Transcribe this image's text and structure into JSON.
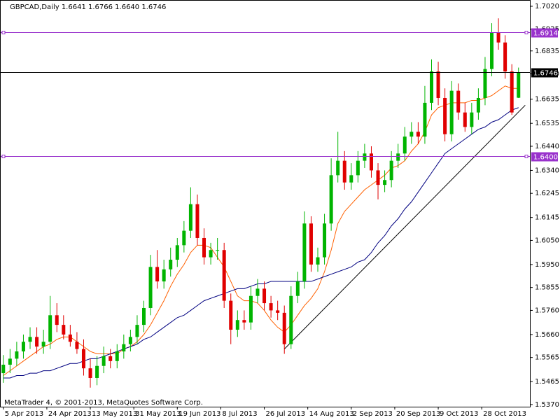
{
  "chart_data": {
    "type": "candlestick",
    "title": "GBPCAD,Daily  1.6641 1.6766 1.6640 1.6746",
    "credit": "MetaTrader 4, © 2001-2013, MetaQuotes Software Corp.",
    "up_color": "#00b400",
    "down_color": "#e00000",
    "open": [
      1.55,
      1.5535,
      1.556,
      1.559,
      1.563,
      1.565,
      1.561,
      1.563,
      1.574,
      1.57,
      1.566,
      1.563,
      1.56,
      1.552,
      1.548,
      1.553,
      1.557,
      1.555,
      1.559,
      1.562,
      1.565,
      1.57,
      1.577,
      1.594,
      1.588,
      1.593,
      1.597,
      1.603,
      1.609,
      1.62,
      1.606,
      1.598,
      1.601,
      1.601,
      1.58,
      1.568,
      1.572,
      1.571,
      1.582,
      1.585,
      1.579,
      1.576,
      1.575,
      1.562,
      1.582,
      1.588,
      1.612,
      1.595,
      1.598,
      1.612,
      1.632,
      1.638,
      1.629,
      1.632,
      1.638,
      1.641,
      1.634,
      1.628,
      1.63,
      1.638,
      1.641,
      1.648,
      1.65,
      1.648,
      1.662,
      1.675,
      1.664,
      1.649,
      1.667,
      1.658,
      1.652,
      1.658,
      1.664,
      1.676,
      1.691,
      1.687,
      1.675,
      1.6641
    ],
    "high": [
      1.5575,
      1.56,
      1.563,
      1.566,
      1.569,
      1.569,
      1.568,
      1.582,
      1.579,
      1.574,
      1.57,
      1.567,
      1.564,
      1.556,
      1.557,
      1.561,
      1.56,
      1.562,
      1.566,
      1.568,
      1.574,
      1.58,
      1.599,
      1.601,
      1.597,
      1.602,
      1.606,
      1.613,
      1.627,
      1.624,
      1.61,
      1.604,
      1.606,
      1.604,
      1.583,
      1.576,
      1.576,
      1.586,
      1.589,
      1.588,
      1.582,
      1.58,
      1.578,
      1.586,
      1.592,
      1.617,
      1.615,
      1.602,
      1.616,
      1.639,
      1.65,
      1.642,
      1.637,
      1.642,
      1.645,
      1.644,
      1.637,
      1.634,
      1.642,
      1.645,
      1.652,
      1.654,
      1.654,
      1.669,
      1.68,
      1.679,
      1.668,
      1.671,
      1.67,
      1.662,
      1.662,
      1.668,
      1.681,
      1.695,
      1.697,
      1.69,
      1.678,
      1.6766
    ],
    "low": [
      1.546,
      1.55,
      1.553,
      1.556,
      1.56,
      1.558,
      1.558,
      1.56,
      1.567,
      1.564,
      1.561,
      1.558,
      1.549,
      1.544,
      1.545,
      1.55,
      1.552,
      1.552,
      1.556,
      1.559,
      1.562,
      1.567,
      1.574,
      1.585,
      1.585,
      1.59,
      1.594,
      1.6,
      1.606,
      1.603,
      1.595,
      1.595,
      1.597,
      1.577,
      1.562,
      1.565,
      1.568,
      1.568,
      1.579,
      1.576,
      1.573,
      1.572,
      1.558,
      1.56,
      1.579,
      1.585,
      1.592,
      1.592,
      1.595,
      1.609,
      1.629,
      1.626,
      1.626,
      1.629,
      1.635,
      1.631,
      1.622,
      1.625,
      1.627,
      1.635,
      1.638,
      1.645,
      1.645,
      1.645,
      1.659,
      1.661,
      1.646,
      1.646,
      1.655,
      1.65,
      1.649,
      1.655,
      1.661,
      1.673,
      1.684,
      1.672,
      1.657,
      1.664
    ],
    "close": [
      1.5535,
      1.556,
      1.559,
      1.563,
      1.565,
      1.561,
      1.563,
      1.574,
      1.57,
      1.566,
      1.563,
      1.56,
      1.552,
      1.548,
      1.553,
      1.557,
      1.555,
      1.559,
      1.562,
      1.565,
      1.57,
      1.577,
      1.594,
      1.588,
      1.593,
      1.597,
      1.603,
      1.609,
      1.62,
      1.606,
      1.598,
      1.601,
      1.601,
      1.58,
      1.568,
      1.572,
      1.571,
      1.582,
      1.585,
      1.579,
      1.576,
      1.575,
      1.562,
      1.582,
      1.588,
      1.612,
      1.595,
      1.598,
      1.612,
      1.632,
      1.638,
      1.629,
      1.632,
      1.638,
      1.641,
      1.634,
      1.628,
      1.63,
      1.638,
      1.641,
      1.648,
      1.65,
      1.648,
      1.662,
      1.675,
      1.664,
      1.649,
      1.667,
      1.658,
      1.652,
      1.658,
      1.664,
      1.676,
      1.691,
      1.687,
      1.675,
      1.658,
      1.6746
    ],
    "series": [
      {
        "color": "#ff6000",
        "values": [
          1.549,
          1.551,
          1.553,
          1.555,
          1.557,
          1.559,
          1.561,
          1.562,
          1.564,
          1.565,
          1.565,
          1.563,
          1.561,
          1.559,
          1.558,
          1.558,
          1.558,
          1.558,
          1.56,
          1.561,
          1.563,
          1.566,
          1.57,
          1.575,
          1.58,
          1.586,
          1.591,
          1.595,
          1.6,
          1.603,
          1.603,
          1.602,
          1.598,
          1.594,
          1.588,
          1.582,
          1.58,
          1.58,
          1.579,
          1.576,
          1.572,
          1.569,
          1.567,
          1.57,
          1.574,
          1.578,
          1.581,
          1.585,
          1.592,
          1.601,
          1.612,
          1.617,
          1.62,
          1.623,
          1.626,
          1.628,
          1.63,
          1.632,
          1.635,
          1.636,
          1.638,
          1.642,
          1.645,
          1.65,
          1.657,
          1.66,
          1.661,
          1.662,
          1.662,
          1.662,
          1.663,
          1.663,
          1.664,
          1.665,
          1.667,
          1.669,
          1.668,
          1.668
        ]
      },
      {
        "color": "#000080",
        "values": [
          1.548,
          1.548,
          1.549,
          1.549,
          1.55,
          1.55,
          1.551,
          1.551,
          1.552,
          1.553,
          1.554,
          1.554,
          1.555,
          1.556,
          1.556,
          1.557,
          1.558,
          1.559,
          1.56,
          1.561,
          1.562,
          1.564,
          1.565,
          1.567,
          1.569,
          1.571,
          1.573,
          1.574,
          1.576,
          1.578,
          1.58,
          1.581,
          1.582,
          1.583,
          1.584,
          1.585,
          1.585,
          1.586,
          1.587,
          1.587,
          1.588,
          1.588,
          1.588,
          1.588,
          1.588,
          1.588,
          1.588,
          1.589,
          1.59,
          1.591,
          1.592,
          1.593,
          1.594,
          1.596,
          1.597,
          1.6,
          1.604,
          1.607,
          1.611,
          1.614,
          1.618,
          1.621,
          1.625,
          1.629,
          1.633,
          1.637,
          1.641,
          1.643,
          1.645,
          1.647,
          1.649,
          1.651,
          1.652,
          1.654,
          1.655,
          1.657,
          1.659,
          1.66
        ]
      }
    ],
    "trendline": {
      "color": "#000000",
      "x": [
        42,
        78
      ],
      "y": [
        1.56,
        1.661
      ]
    },
    "levels": [
      {
        "value": 1.6914,
        "label": "1.6914",
        "color": "#9932cc"
      },
      {
        "value": 1.6746,
        "label": "1.6746",
        "color": "#000000"
      },
      {
        "value": 1.64,
        "label": "1.6400",
        "color": "#9932cc"
      }
    ],
    "xlim": [
      -0.5,
      78.7
    ],
    "ylim": [
      1.5361,
      1.7046
    ],
    "xticks": [
      {
        "value": 0,
        "label": "5 Apr 2013"
      },
      {
        "value": 6.5,
        "label": "24 Apr 2013"
      },
      {
        "value": 13,
        "label": "13 May 2013"
      },
      {
        "value": 19.5,
        "label": "31 May 2013"
      },
      {
        "value": 26,
        "label": "19 Jun 2013"
      },
      {
        "value": 32.5,
        "label": "8 Jul 2013"
      },
      {
        "value": 39,
        "label": "26 Jul 2013"
      },
      {
        "value": 45.5,
        "label": "14 Aug 2013"
      },
      {
        "value": 52,
        "label": "2 Sep 2013"
      },
      {
        "value": 58.5,
        "label": "20 Sep 2013"
      },
      {
        "value": 65,
        "label": "9 Oct 2013"
      },
      {
        "value": 71.5,
        "label": "28 Oct 2013"
      }
    ],
    "yticks": [
      {
        "value": 1.702,
        "label": "1.7020"
      },
      {
        "value": 1.6925,
        "label": "1.6925"
      },
      {
        "value": 1.6835,
        "label": "1.6835"
      },
      {
        "value": 1.674,
        "label": "1.6740"
      },
      {
        "value": 1.6635,
        "label": "1.6635"
      },
      {
        "value": 1.6535,
        "label": "1.6535"
      },
      {
        "value": 1.644,
        "label": "1.6440"
      },
      {
        "value": 1.634,
        "label": "1.6340"
      },
      {
        "value": 1.6245,
        "label": "1.6245"
      },
      {
        "value": 1.6145,
        "label": "1.6145"
      },
      {
        "value": 1.605,
        "label": "1.6050"
      },
      {
        "value": 1.595,
        "label": "1.5950"
      },
      {
        "value": 1.5855,
        "label": "1.5855"
      },
      {
        "value": 1.576,
        "label": "1.5760"
      },
      {
        "value": 1.566,
        "label": "1.5660"
      },
      {
        "value": 1.5565,
        "label": "1.5565"
      },
      {
        "value": 1.5465,
        "label": "1.5465"
      },
      {
        "value": 1.537,
        "label": "1.5370"
      }
    ]
  }
}
